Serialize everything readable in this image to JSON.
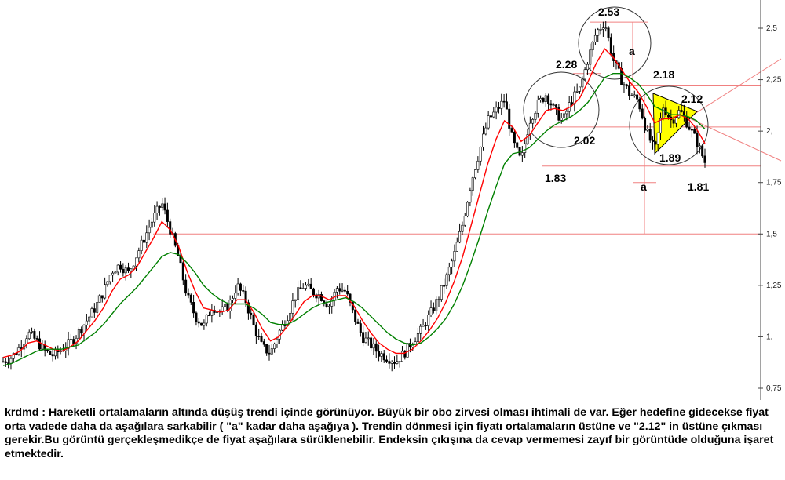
{
  "chart_data": {
    "type": "candlestick",
    "title": "",
    "xlabel": "",
    "ylabel": "",
    "ylim": [
      0.75,
      2.625
    ],
    "y_ticks": [
      "0,75",
      "1,",
      "1,25",
      "1,5",
      "1,75",
      "2,",
      "2,25",
      "2,5"
    ],
    "y_tick_values": [
      0.75,
      1.0,
      1.25,
      1.5,
      1.75,
      2.0,
      2.25,
      2.5
    ],
    "grid": false,
    "series": [
      {
        "kind": "price",
        "color": "#000000",
        "values": [
          0.88,
          0.9,
          0.95,
          1.02,
          0.98,
          0.93,
          0.91,
          0.94,
          0.97,
          1.02,
          1.08,
          1.14,
          1.22,
          1.32,
          1.35,
          1.31,
          1.4,
          1.49,
          1.58,
          1.65,
          1.52,
          1.38,
          1.2,
          1.1,
          1.05,
          1.15,
          1.12,
          1.15,
          1.25,
          1.18,
          1.05,
          0.95,
          0.92,
          1.02,
          1.1,
          1.2,
          1.25,
          1.22,
          1.2,
          1.15,
          1.24,
          1.22,
          1.1,
          1.0,
          0.96,
          0.92,
          0.9,
          0.88,
          0.92,
          0.98,
          1.03,
          1.1,
          1.18,
          1.28,
          1.4,
          1.55,
          1.75,
          1.9,
          2.05,
          2.1,
          2.15,
          1.95,
          1.85,
          2.05,
          2.13,
          2.18,
          2.1,
          2.05,
          2.15,
          2.2,
          2.35,
          2.48,
          2.53,
          2.35,
          2.25,
          2.18,
          2.15,
          2.0,
          1.9,
          2.12,
          2.05,
          2.1,
          2.03,
          1.95,
          1.85
        ]
      },
      {
        "kind": "moving_average",
        "color": "#ff0000",
        "values": [
          0.9,
          0.91,
          0.93,
          0.97,
          0.98,
          0.96,
          0.94,
          0.93,
          0.95,
          0.98,
          1.03,
          1.08,
          1.14,
          1.22,
          1.28,
          1.3,
          1.34,
          1.41,
          1.48,
          1.56,
          1.52,
          1.44,
          1.32,
          1.22,
          1.14,
          1.13,
          1.12,
          1.13,
          1.18,
          1.18,
          1.12,
          1.04,
          0.98,
          1.0,
          1.05,
          1.11,
          1.17,
          1.2,
          1.2,
          1.18,
          1.2,
          1.2,
          1.15,
          1.08,
          1.02,
          0.97,
          0.94,
          0.92,
          0.92,
          0.94,
          0.98,
          1.03,
          1.09,
          1.17,
          1.27,
          1.39,
          1.54,
          1.69,
          1.84,
          1.96,
          2.05,
          2.02,
          1.95,
          1.98,
          2.04,
          2.1,
          2.11,
          2.1,
          2.12,
          2.16,
          2.24,
          2.33,
          2.4,
          2.36,
          2.3,
          2.24,
          2.19,
          2.12,
          2.04,
          2.06,
          2.06,
          2.08,
          2.06,
          2.01,
          1.94
        ]
      },
      {
        "kind": "moving_average",
        "color": "#008000",
        "values": [
          0.86,
          0.87,
          0.89,
          0.91,
          0.93,
          0.94,
          0.94,
          0.94,
          0.95,
          0.96,
          0.99,
          1.02,
          1.06,
          1.11,
          1.16,
          1.2,
          1.24,
          1.29,
          1.34,
          1.39,
          1.41,
          1.4,
          1.36,
          1.31,
          1.25,
          1.21,
          1.18,
          1.16,
          1.16,
          1.16,
          1.14,
          1.11,
          1.07,
          1.06,
          1.06,
          1.08,
          1.11,
          1.14,
          1.16,
          1.17,
          1.18,
          1.19,
          1.17,
          1.14,
          1.1,
          1.06,
          1.02,
          0.99,
          0.97,
          0.96,
          0.97,
          1.0,
          1.04,
          1.09,
          1.16,
          1.25,
          1.36,
          1.48,
          1.61,
          1.73,
          1.84,
          1.89,
          1.9,
          1.92,
          1.96,
          2.0,
          2.03,
          2.05,
          2.07,
          2.1,
          2.14,
          2.2,
          2.26,
          2.28,
          2.28,
          2.26,
          2.23,
          2.18,
          2.12,
          2.1,
          2.08,
          2.08,
          2.07,
          2.05,
          2.01
        ]
      }
    ],
    "annotations": [
      {
        "text": "2.53",
        "value": 2.53
      },
      {
        "text": "2.28",
        "value": 2.28
      },
      {
        "text": "2.18",
        "value": 2.18
      },
      {
        "text": "2.12",
        "value": 2.12
      },
      {
        "text": "2.02",
        "value": 2.02
      },
      {
        "text": "1.89",
        "value": 1.89
      },
      {
        "text": "1.83",
        "value": 1.83
      },
      {
        "text": "1.81",
        "value": 1.81
      },
      {
        "text": "a",
        "value": null
      },
      {
        "text": "a",
        "value": null
      }
    ],
    "horizontal_lines": [
      1.5,
      1.83,
      2.02,
      2.22,
      2.53,
      1.85
    ],
    "pattern": {
      "kind": "triangle",
      "color": "#ffff00"
    }
  },
  "note": {
    "text": "krdmd : Hareketli ortalamaların altında düşüş trendi içinde görünüyor. Büyük bir obo zirvesi olması ihtimali de var. Eğer hedefine gidecekse fiyat orta vadede daha da aşağılara sarkabilir ( \"a\" kadar daha aşağıya ). Trendin dönmesi için fiyatı ortalamaların üstüne ve \"2.12\" in üstüne çıkması gerekir.Bu görüntü gerçekleşmedikçe de fiyat aşağılara sürüklenebilir. Endeksin çıkışına da cevap vermemesi zayıf bir görüntüde olduğuna işaret etmektedir."
  }
}
